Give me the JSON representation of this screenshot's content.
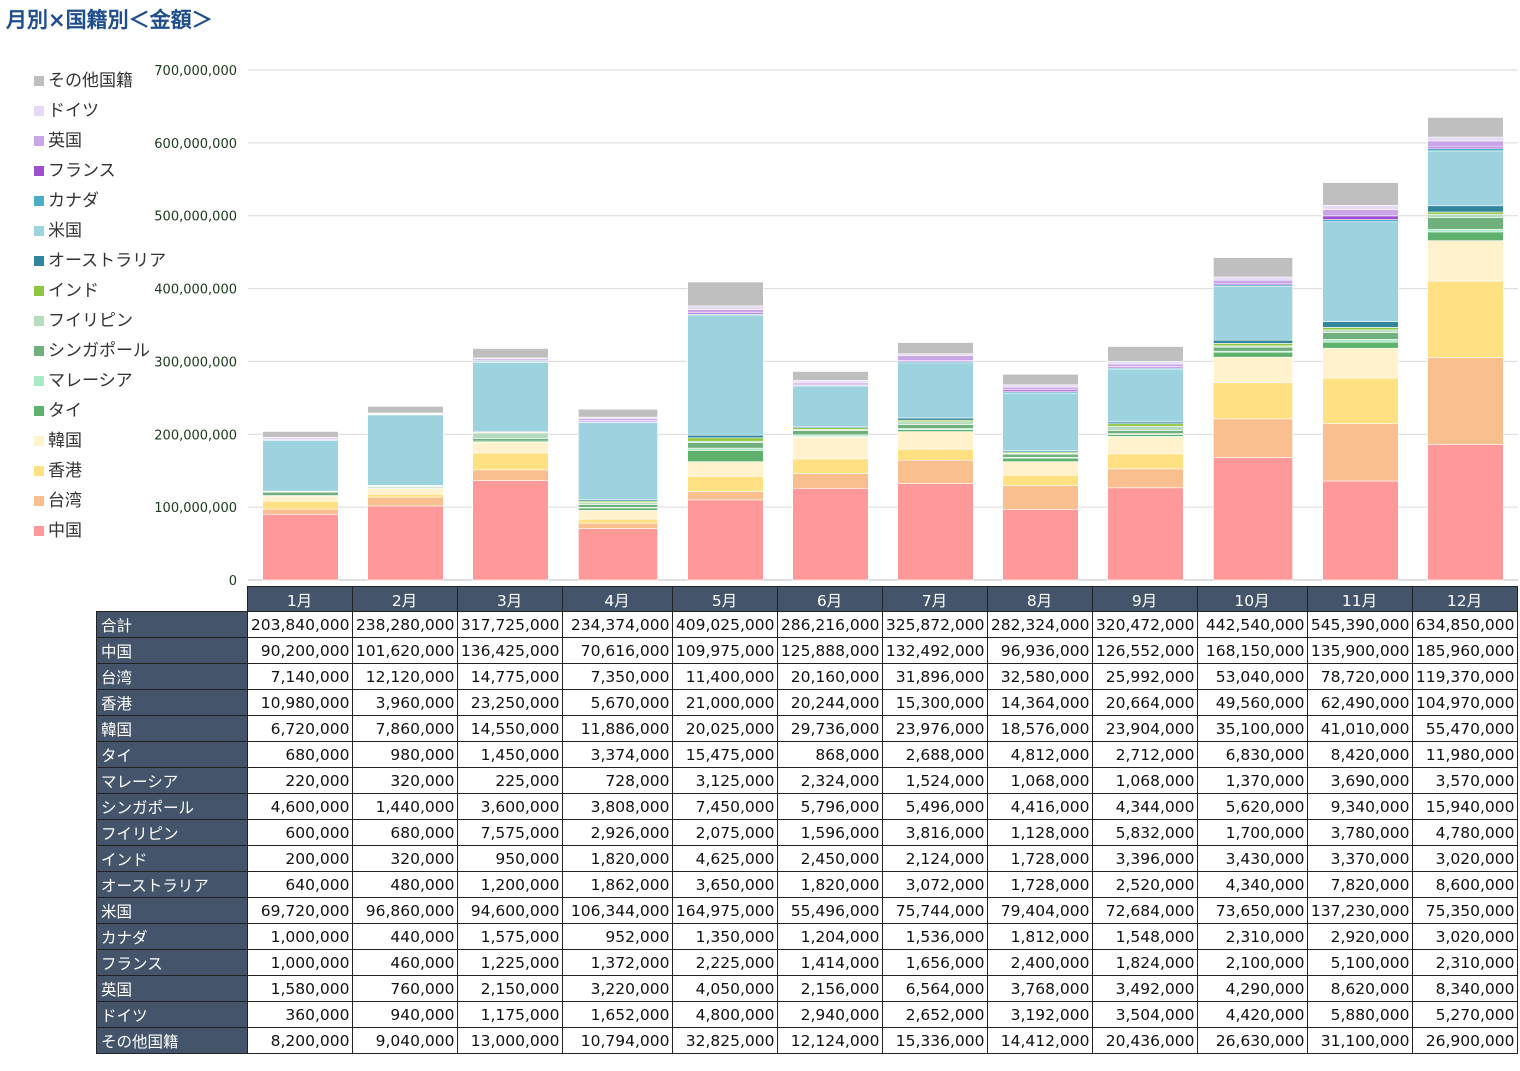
{
  "title": "月別×国籍別＜金額＞",
  "chart_data": {
    "type": "bar",
    "stacked": true,
    "ylim": [
      0,
      700000000
    ],
    "yticks": [
      "0",
      "100,000,000",
      "200,000,000",
      "300,000,000",
      "400,000,000",
      "500,000,000",
      "600,000,000",
      "700,000,000"
    ],
    "grid": true,
    "legend_position": "left",
    "categories": [
      "1月",
      "2月",
      "3月",
      "4月",
      "5月",
      "6月",
      "7月",
      "8月",
      "9月",
      "10月",
      "11月",
      "12月"
    ],
    "total_label": "合計",
    "totals": [
      "203,840,000",
      "238,280,000",
      "317,725,000",
      "234,374,000",
      "409,025,000",
      "286,216,000",
      "325,872,000",
      "282,324,000",
      "320,472,000",
      "442,540,000",
      "545,390,000",
      "634,850,000"
    ],
    "series": [
      {
        "name": "中国",
        "color": "#ff9999",
        "values": [
          90200000,
          101620000,
          136425000,
          70616000,
          109975000,
          125888000,
          132492000,
          96936000,
          126552000,
          168150000,
          135900000,
          185960000
        ]
      },
      {
        "name": "台湾",
        "color": "#fabf8f",
        "values": [
          7140000,
          12120000,
          14775000,
          7350000,
          11400000,
          20160000,
          31896000,
          32580000,
          25992000,
          53040000,
          78720000,
          119370000
        ]
      },
      {
        "name": "香港",
        "color": "#ffe082",
        "values": [
          10980000,
          3960000,
          23250000,
          5670000,
          21000000,
          20244000,
          15300000,
          14364000,
          20664000,
          49560000,
          62490000,
          104970000
        ]
      },
      {
        "name": "韓国",
        "color": "#fff2cc",
        "values": [
          6720000,
          7860000,
          14550000,
          11886000,
          20025000,
          29736000,
          23976000,
          18576000,
          23904000,
          35100000,
          41010000,
          55470000
        ]
      },
      {
        "name": "タイ",
        "color": "#5fb26d",
        "values": [
          680000,
          980000,
          1450000,
          3374000,
          15475000,
          868000,
          2688000,
          4812000,
          2712000,
          6830000,
          8420000,
          11980000
        ]
      },
      {
        "name": "マレーシア",
        "color": "#a6ebc6",
        "values": [
          220000,
          320000,
          225000,
          728000,
          3125000,
          2324000,
          1524000,
          1068000,
          1068000,
          1370000,
          3690000,
          3570000
        ]
      },
      {
        "name": "シンガポール",
        "color": "#6fb07c",
        "values": [
          4600000,
          1440000,
          3600000,
          3808000,
          7450000,
          5796000,
          5496000,
          4416000,
          4344000,
          5620000,
          9340000,
          15940000
        ]
      },
      {
        "name": "フイリピン",
        "color": "#b6dcc0",
        "values": [
          600000,
          680000,
          7575000,
          2926000,
          2075000,
          1596000,
          3816000,
          1128000,
          5832000,
          1700000,
          3780000,
          4780000
        ]
      },
      {
        "name": "インド",
        "color": "#8dc63f",
        "values": [
          200000,
          320000,
          950000,
          1820000,
          4625000,
          2450000,
          2124000,
          1728000,
          3396000,
          3430000,
          3370000,
          3020000
        ]
      },
      {
        "name": "オーストラリア",
        "color": "#31859c",
        "values": [
          640000,
          480000,
          1200000,
          1862000,
          3650000,
          1820000,
          3072000,
          1728000,
          2520000,
          4340000,
          7820000,
          8600000
        ]
      },
      {
        "name": "米国",
        "color": "#9dd3df",
        "values": [
          69720000,
          96860000,
          94600000,
          106344000,
          164975000,
          55496000,
          75744000,
          79404000,
          72684000,
          73650000,
          137230000,
          75350000
        ]
      },
      {
        "name": "カナダ",
        "color": "#4bacc6",
        "values": [
          1000000,
          440000,
          1575000,
          952000,
          1350000,
          1204000,
          1536000,
          1812000,
          1548000,
          2310000,
          2920000,
          3020000
        ]
      },
      {
        "name": "フランス",
        "color": "#9b4fcf",
        "values": [
          1000000,
          460000,
          1225000,
          1372000,
          2225000,
          1414000,
          1656000,
          2400000,
          1824000,
          2100000,
          5100000,
          2310000
        ]
      },
      {
        "name": "英国",
        "color": "#c9a6e8",
        "values": [
          1580000,
          760000,
          2150000,
          3220000,
          4050000,
          2156000,
          6564000,
          3768000,
          3492000,
          4290000,
          8620000,
          8340000
        ]
      },
      {
        "name": "ドイツ",
        "color": "#e6d9f5",
        "values": [
          360000,
          940000,
          1175000,
          1652000,
          4800000,
          2940000,
          2652000,
          3192000,
          3504000,
          4420000,
          5880000,
          5270000
        ]
      },
      {
        "name": "その他国籍",
        "color": "#bfbfbf",
        "values": [
          8200000,
          9040000,
          13000000,
          10794000,
          32825000,
          12124000,
          15336000,
          14412000,
          20436000,
          26630000,
          31100000,
          26900000
        ]
      }
    ]
  },
  "table_rows": [
    {
      "name": "合計",
      "cells": [
        "203,840,000",
        "238,280,000",
        "317,725,000",
        "234,374,000",
        "409,025,000",
        "286,216,000",
        "325,872,000",
        "282,324,000",
        "320,472,000",
        "442,540,000",
        "545,390,000",
        "634,850,000"
      ]
    },
    {
      "name": "中国",
      "cells": [
        "90,200,000",
        "101,620,000",
        "136,425,000",
        "70,616,000",
        "109,975,000",
        "125,888,000",
        "132,492,000",
        "96,936,000",
        "126,552,000",
        "168,150,000",
        "135,900,000",
        "185,960,000"
      ]
    },
    {
      "name": "台湾",
      "cells": [
        "7,140,000",
        "12,120,000",
        "14,775,000",
        "7,350,000",
        "11,400,000",
        "20,160,000",
        "31,896,000",
        "32,580,000",
        "25,992,000",
        "53,040,000",
        "78,720,000",
        "119,370,000"
      ]
    },
    {
      "name": "香港",
      "cells": [
        "10,980,000",
        "3,960,000",
        "23,250,000",
        "5,670,000",
        "21,000,000",
        "20,244,000",
        "15,300,000",
        "14,364,000",
        "20,664,000",
        "49,560,000",
        "62,490,000",
        "104,970,000"
      ]
    },
    {
      "name": "韓国",
      "cells": [
        "6,720,000",
        "7,860,000",
        "14,550,000",
        "11,886,000",
        "20,025,000",
        "29,736,000",
        "23,976,000",
        "18,576,000",
        "23,904,000",
        "35,100,000",
        "41,010,000",
        "55,470,000"
      ]
    },
    {
      "name": "タイ",
      "cells": [
        "680,000",
        "980,000",
        "1,450,000",
        "3,374,000",
        "15,475,000",
        "868,000",
        "2,688,000",
        "4,812,000",
        "2,712,000",
        "6,830,000",
        "8,420,000",
        "11,980,000"
      ]
    },
    {
      "name": "マレーシア",
      "cells": [
        "220,000",
        "320,000",
        "225,000",
        "728,000",
        "3,125,000",
        "2,324,000",
        "1,524,000",
        "1,068,000",
        "1,068,000",
        "1,370,000",
        "3,690,000",
        "3,570,000"
      ]
    },
    {
      "name": "シンガポール",
      "cells": [
        "4,600,000",
        "1,440,000",
        "3,600,000",
        "3,808,000",
        "7,450,000",
        "5,796,000",
        "5,496,000",
        "4,416,000",
        "4,344,000",
        "5,620,000",
        "9,340,000",
        "15,940,000"
      ]
    },
    {
      "name": "フイリピン",
      "cells": [
        "600,000",
        "680,000",
        "7,575,000",
        "2,926,000",
        "2,075,000",
        "1,596,000",
        "3,816,000",
        "1,128,000",
        "5,832,000",
        "1,700,000",
        "3,780,000",
        "4,780,000"
      ]
    },
    {
      "name": "インド",
      "cells": [
        "200,000",
        "320,000",
        "950,000",
        "1,820,000",
        "4,625,000",
        "2,450,000",
        "2,124,000",
        "1,728,000",
        "3,396,000",
        "3,430,000",
        "3,370,000",
        "3,020,000"
      ]
    },
    {
      "name": "オーストラリア",
      "cells": [
        "640,000",
        "480,000",
        "1,200,000",
        "1,862,000",
        "3,650,000",
        "1,820,000",
        "3,072,000",
        "1,728,000",
        "2,520,000",
        "4,340,000",
        "7,820,000",
        "8,600,000"
      ]
    },
    {
      "name": "米国",
      "cells": [
        "69,720,000",
        "96,860,000",
        "94,600,000",
        "106,344,000",
        "164,975,000",
        "55,496,000",
        "75,744,000",
        "79,404,000",
        "72,684,000",
        "73,650,000",
        "137,230,000",
        "75,350,000"
      ]
    },
    {
      "name": "カナダ",
      "cells": [
        "1,000,000",
        "440,000",
        "1,575,000",
        "952,000",
        "1,350,000",
        "1,204,000",
        "1,536,000",
        "1,812,000",
        "1,548,000",
        "2,310,000",
        "2,920,000",
        "3,020,000"
      ]
    },
    {
      "name": "フランス",
      "cells": [
        "1,000,000",
        "460,000",
        "1,225,000",
        "1,372,000",
        "2,225,000",
        "1,414,000",
        "1,656,000",
        "2,400,000",
        "1,824,000",
        "2,100,000",
        "5,100,000",
        "2,310,000"
      ]
    },
    {
      "name": "英国",
      "cells": [
        "1,580,000",
        "760,000",
        "2,150,000",
        "3,220,000",
        "4,050,000",
        "2,156,000",
        "6,564,000",
        "3,768,000",
        "3,492,000",
        "4,290,000",
        "8,620,000",
        "8,340,000"
      ]
    },
    {
      "name": "ドイツ",
      "cells": [
        "360,000",
        "940,000",
        "1,175,000",
        "1,652,000",
        "4,800,000",
        "2,940,000",
        "2,652,000",
        "3,192,000",
        "3,504,000",
        "4,420,000",
        "5,880,000",
        "5,270,000"
      ]
    },
    {
      "name": "その他国籍",
      "cells": [
        "8,200,000",
        "9,040,000",
        "13,000,000",
        "10,794,000",
        "32,825,000",
        "12,124,000",
        "15,336,000",
        "14,412,000",
        "20,436,000",
        "26,630,000",
        "31,100,000",
        "26,900,000"
      ]
    }
  ]
}
